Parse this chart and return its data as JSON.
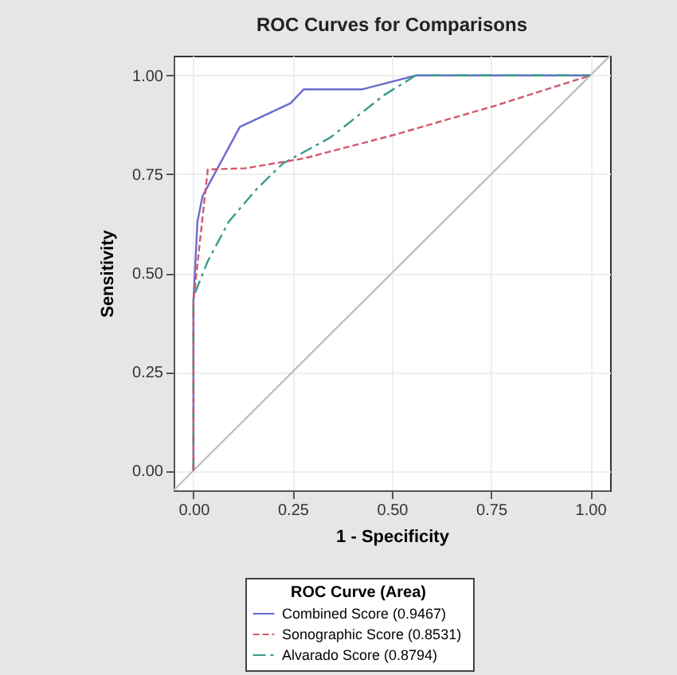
{
  "chart_data": {
    "type": "line",
    "title": "ROC Curves for Comparisons",
    "xlabel": "1 - Specificity",
    "ylabel": "Sensitivity",
    "legend_title": "ROC Curve (Area)",
    "xlim": [
      -0.05,
      1.05
    ],
    "ylim": [
      -0.05,
      1.05
    ],
    "xticks": [
      {
        "value": 0,
        "label": "0.00"
      },
      {
        "value": 0.25,
        "label": "0.25"
      },
      {
        "value": 0.5,
        "label": "0.50"
      },
      {
        "value": 0.75,
        "label": "0.75"
      },
      {
        "value": 1,
        "label": "1.00"
      }
    ],
    "yticks": [
      {
        "value": 0,
        "label": "0.00"
      },
      {
        "value": 0.25,
        "label": "0.25"
      },
      {
        "value": 0.5,
        "label": "0.50"
      },
      {
        "value": 0.75,
        "label": "0.75"
      },
      {
        "value": 1,
        "label": "1.00"
      }
    ],
    "grid": true,
    "legend": "bottom",
    "marker": "none",
    "series": [
      {
        "name": "Combined Score  (0.9467)",
        "color": "#6a6ad0",
        "line_style": "solid",
        "x": [
          0,
          0,
          0.01,
          0.023,
          0.117,
          0.245,
          0.278,
          0.426,
          0.56,
          1
        ],
        "values": [
          0,
          0.43,
          0.63,
          0.695,
          0.87,
          0.93,
          0.965,
          0.965,
          1,
          1
        ]
      },
      {
        "name": "Sonographic Score  (0.8531)",
        "color": "#d05a6a",
        "line_style": "dashed",
        "x": [
          0,
          0,
          0.036,
          0.13,
          0.278,
          0.507,
          0.762,
          1
        ],
        "values": [
          0,
          0.43,
          0.762,
          0.765,
          0.79,
          0.85,
          0.924,
          1
        ]
      },
      {
        "name": "Alvarado Score  (0.8794)",
        "color": "#3a9a8a",
        "line_style": "dashdot",
        "x": [
          0,
          0,
          0.036,
          0.089,
          0.157,
          0.225,
          0.345,
          0.48,
          0.56,
          1
        ],
        "values": [
          0,
          0.44,
          0.53,
          0.63,
          0.71,
          0.777,
          0.843,
          0.95,
          1,
          1
        ]
      },
      {
        "color": "#c0c0c0",
        "line_style": "solid",
        "x": [
          -0.05,
          1.05
        ],
        "values": [
          -0.05,
          1.05
        ]
      }
    ]
  }
}
